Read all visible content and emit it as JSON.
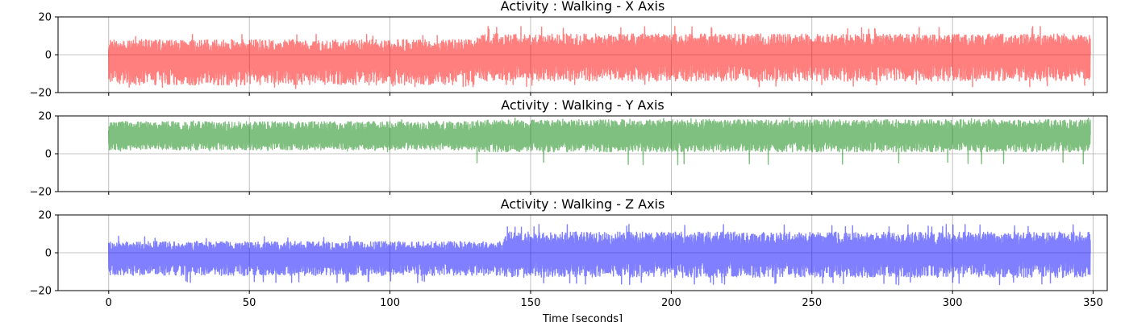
{
  "chart_data": [
    {
      "type": "line",
      "title": "Activity : Walking - X Axis",
      "xlabel": "",
      "ylabel": "",
      "xlim": [
        -18,
        355
      ],
      "ylim": [
        -20,
        20
      ],
      "xticks": [
        0,
        50,
        100,
        150,
        200,
        250,
        300,
        350
      ],
      "xtick_labels": [],
      "yticks": [
        -20,
        0,
        20
      ],
      "ytick_labels": [
        "−20",
        "0",
        "20"
      ],
      "grid": true,
      "series": [
        {
          "name": "X Axis",
          "color": "#ff0000",
          "alpha": 0.5,
          "x_range": [
            0,
            349
          ],
          "segments": [
            {
              "x_start": 0,
              "x_end": 130,
              "center": -2,
              "amplitude_low": -16,
              "amplitude_high": 8,
              "peak_min": -18,
              "peak_max": 11
            },
            {
              "x_start": 130,
              "x_end": 349,
              "center": 0,
              "amplitude_low": -14,
              "amplitude_high": 11,
              "peak_min": -17,
              "peak_max": 15
            }
          ]
        }
      ]
    },
    {
      "type": "line",
      "title": "Activity : Walking - Y Axis",
      "xlabel": "",
      "ylabel": "",
      "xlim": [
        -18,
        355
      ],
      "ylim": [
        -20,
        20
      ],
      "xticks": [
        0,
        50,
        100,
        150,
        200,
        250,
        300,
        350
      ],
      "xtick_labels": [],
      "yticks": [
        -20,
        0,
        20
      ],
      "ytick_labels": [
        "−20",
        "0",
        "20"
      ],
      "grid": true,
      "series": [
        {
          "name": "Y Axis",
          "color": "#008000",
          "alpha": 0.5,
          "x_range": [
            0,
            349
          ],
          "segments": [
            {
              "x_start": 0,
              "x_end": 130,
              "center": 9,
              "amplitude_low": 2,
              "amplitude_high": 17,
              "peak_min": 1,
              "peak_max": 18
            },
            {
              "x_start": 130,
              "x_end": 349,
              "center": 10,
              "amplitude_low": 1,
              "amplitude_high": 18,
              "peak_min": -6,
              "peak_max": 19
            }
          ]
        }
      ]
    },
    {
      "type": "line",
      "title": "Activity : Walking - Z Axis",
      "xlabel": "Time [seconds]",
      "ylabel": "",
      "xlim": [
        -18,
        355
      ],
      "ylim": [
        -20,
        20
      ],
      "xticks": [
        0,
        50,
        100,
        150,
        200,
        250,
        300,
        350
      ],
      "xtick_labels": [
        "0",
        "50",
        "100",
        "150",
        "200",
        "250",
        "300",
        "350"
      ],
      "yticks": [
        -20,
        0,
        20
      ],
      "ytick_labels": [
        "−20",
        "0",
        "20"
      ],
      "grid": true,
      "series": [
        {
          "name": "Z Axis",
          "color": "#0000ff",
          "alpha": 0.5,
          "x_range": [
            0,
            349
          ],
          "segments": [
            {
              "x_start": 0,
              "x_end": 140,
              "center": -2,
              "amplitude_low": -12,
              "amplitude_high": 6,
              "peak_min": -16,
              "peak_max": 9
            },
            {
              "x_start": 140,
              "x_end": 349,
              "center": 0,
              "amplitude_low": -13,
              "amplitude_high": 11,
              "peak_min": -17,
              "peak_max": 15
            }
          ]
        }
      ]
    }
  ]
}
